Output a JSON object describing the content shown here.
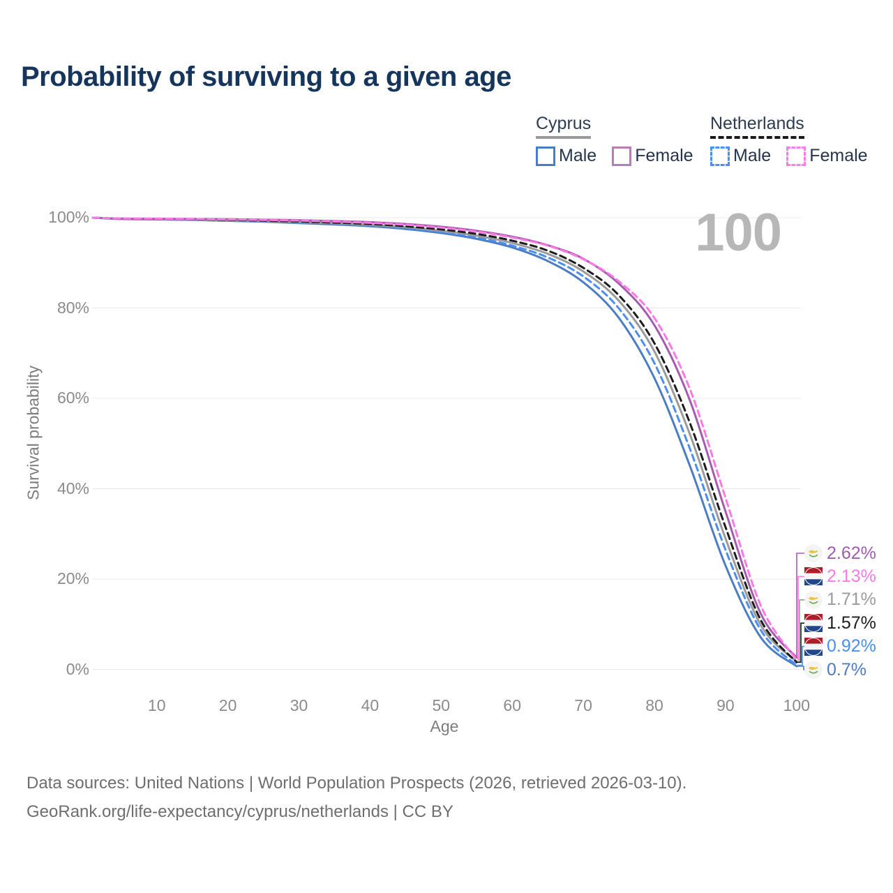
{
  "page": {
    "title": "Probability of surviving to a given age",
    "watermark": "100",
    "footer_line1": "Data sources: United Nations | World Population Prospects (2026, retrieved 2026-03-10).",
    "footer_line2": "GeoRank.org/life-expectancy/cyprus/netherlands | CC BY"
  },
  "legend": {
    "groups": [
      {
        "country": "Cyprus",
        "line_style": "solid",
        "underline_color": "#9a9a9a",
        "items": [
          {
            "label": "Male",
            "color": "#4a7dc4"
          },
          {
            "label": "Female",
            "color": "#b57fb5"
          }
        ]
      },
      {
        "country": "Netherlands",
        "line_style": "dashed",
        "underline_color": "#1a1a1a",
        "items": [
          {
            "label": "Male",
            "color": "#4a8ef2"
          },
          {
            "label": "Female",
            "color": "#fd7ce9"
          }
        ]
      }
    ]
  },
  "chart_data": {
    "type": "line",
    "title": "Probability of surviving to a given age",
    "xlabel": "Age",
    "ylabel": "Survival probability",
    "xlim": [
      1,
      100
    ],
    "ylim": [
      0,
      100
    ],
    "grid": "horizontal",
    "x_ticks": [
      10,
      20,
      30,
      40,
      50,
      60,
      70,
      80,
      90,
      100
    ],
    "y_ticks": [
      0,
      20,
      40,
      60,
      80,
      100
    ],
    "y_tick_suffix": "%",
    "ages": [
      1,
      5,
      10,
      15,
      20,
      25,
      30,
      35,
      40,
      45,
      50,
      55,
      60,
      65,
      70,
      75,
      80,
      85,
      90,
      95,
      100
    ],
    "series": [
      {
        "name": "Cyprus Male",
        "country": "Cyprus",
        "sex": "Male",
        "color": "#4a7dc4",
        "dash": "solid",
        "values": [
          100,
          99.7,
          99.6,
          99.5,
          99.3,
          99.1,
          98.8,
          98.5,
          98.1,
          97.5,
          96.6,
          95.3,
          93.4,
          90.4,
          85.7,
          77.8,
          64.5,
          45.0,
          23.0,
          7.0,
          0.7
        ]
      },
      {
        "name": "Netherlands Male",
        "country": "Netherlands",
        "sex": "Male",
        "color": "#4a8ef2",
        "dash": "dashed",
        "values": [
          100,
          99.8,
          99.7,
          99.6,
          99.4,
          99.2,
          99.0,
          98.7,
          98.3,
          97.7,
          96.8,
          95.6,
          93.8,
          91.2,
          87.0,
          79.9,
          67.8,
          48.8,
          26.5,
          8.6,
          0.92
        ]
      },
      {
        "name": "Cyprus Both sexes",
        "country": "Cyprus",
        "sex": "Both",
        "color": "#9b9b9b",
        "dash": "solid",
        "values": [
          100,
          99.75,
          99.65,
          99.55,
          99.4,
          99.25,
          99.0,
          98.75,
          98.4,
          97.9,
          97.1,
          96.0,
          94.4,
          92.0,
          88.1,
          81.6,
          70.4,
          52.0,
          29.0,
          9.7,
          1.71
        ]
      },
      {
        "name": "Netherlands Both sexes",
        "country": "Netherlands",
        "sex": "Both",
        "color": "#1c1c1c",
        "dash": "dashed",
        "values": [
          100,
          99.8,
          99.75,
          99.65,
          99.5,
          99.35,
          99.15,
          98.9,
          98.6,
          98.1,
          97.4,
          96.4,
          94.9,
          92.7,
          88.9,
          82.8,
          72.2,
          54.5,
          31.5,
          10.8,
          1.57
        ]
      },
      {
        "name": "Cyprus Female",
        "country": "Cyprus",
        "sex": "Female",
        "color": "#a55cb0",
        "dash": "solid",
        "values": [
          100,
          99.8,
          99.75,
          99.7,
          99.65,
          99.55,
          99.45,
          99.25,
          99.0,
          98.6,
          98.0,
          97.1,
          95.8,
          93.9,
          90.9,
          85.4,
          76.2,
          59.5,
          35.0,
          12.2,
          2.62
        ]
      },
      {
        "name": "Netherlands Female",
        "country": "Netherlands",
        "sex": "Female",
        "color": "#fb79e3",
        "dash": "dashed",
        "values": [
          100,
          99.85,
          99.8,
          99.7,
          99.6,
          99.5,
          99.35,
          99.15,
          98.85,
          98.45,
          97.8,
          96.9,
          95.6,
          93.8,
          90.8,
          85.9,
          77.8,
          62.0,
          38.0,
          14.0,
          2.13
        ]
      }
    ],
    "end_labels": [
      {
        "text": "2.62%",
        "series": "Cyprus Female",
        "flag": "cyprus",
        "color": "#a05caf"
      },
      {
        "text": "2.13%",
        "series": "Netherlands Female",
        "flag": "netherlands",
        "color": "#fb79e3"
      },
      {
        "text": "1.71%",
        "series": "Cyprus Both sexes",
        "flag": "cyprus",
        "color": "#9b9b9b"
      },
      {
        "text": "1.57%",
        "series": "Netherlands Both sexes",
        "flag": "netherlands",
        "color": "#1c1c1c"
      },
      {
        "text": "0.92%",
        "series": "Netherlands Male",
        "flag": "netherlands",
        "color": "#4a8ef2"
      },
      {
        "text": "0.7%",
        "series": "Cyprus Male",
        "flag": "cyprus",
        "color": "#4a7dc4"
      }
    ]
  }
}
